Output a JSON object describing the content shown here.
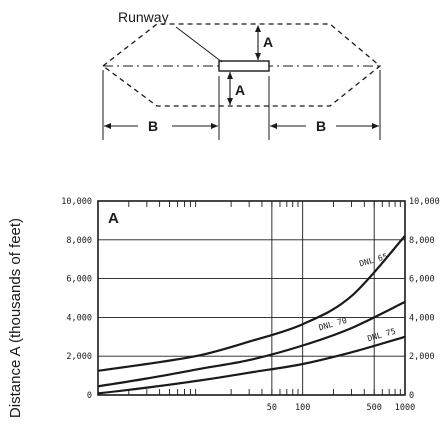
{
  "diagram": {
    "runway_label": "Runway",
    "dim_a_top": "A",
    "dim_a_bottom": "A",
    "dim_b_left": "B",
    "dim_b_right": "B"
  },
  "chart_data": {
    "type": "line",
    "panel_label": "A",
    "ylabel": "Distance A (thousands of feet)",
    "xlabel": "",
    "x_scale": "log",
    "xlim": [
      1,
      1000
    ],
    "ylim": [
      0,
      10000
    ],
    "x_ticks": [
      {
        "value": 50,
        "label": "50"
      },
      {
        "value": 100,
        "label": "100"
      },
      {
        "value": 500,
        "label": "500"
      },
      {
        "value": 1000,
        "label": "1000"
      }
    ],
    "y_ticks": [
      {
        "value": 0,
        "label": "0"
      },
      {
        "value": 2000,
        "label": "2,000"
      },
      {
        "value": 4000,
        "label": "4,000"
      },
      {
        "value": 6000,
        "label": "6,000"
      },
      {
        "value": 8000,
        "label": "8,000"
      },
      {
        "value": 10000,
        "label": "10,000"
      }
    ],
    "y_ticks_right": [
      {
        "value": 0,
        "label": "0"
      },
      {
        "value": 2000,
        "label": "2,000"
      },
      {
        "value": 4000,
        "label": "4,000"
      },
      {
        "value": 6000,
        "label": "6,000"
      },
      {
        "value": 8000,
        "label": "8,000"
      },
      {
        "value": 10000,
        "label": "10,000"
      }
    ],
    "grid": true,
    "series": [
      {
        "name": "DNL 65",
        "x": [
          1,
          3,
          10,
          30,
          100,
          300,
          1000
        ],
        "y": [
          1250,
          1600,
          2050,
          2750,
          3650,
          5100,
          8200
        ]
      },
      {
        "name": "DNL 70",
        "x": [
          1,
          3,
          10,
          30,
          100,
          300,
          1000
        ],
        "y": [
          450,
          850,
          1350,
          1800,
          2550,
          3450,
          4800
        ]
      },
      {
        "name": "DNL 75",
        "x": [
          1,
          3,
          10,
          30,
          100,
          300,
          1000
        ],
        "y": [
          80,
          380,
          750,
          1150,
          1600,
          2200,
          3000
        ]
      }
    ]
  }
}
